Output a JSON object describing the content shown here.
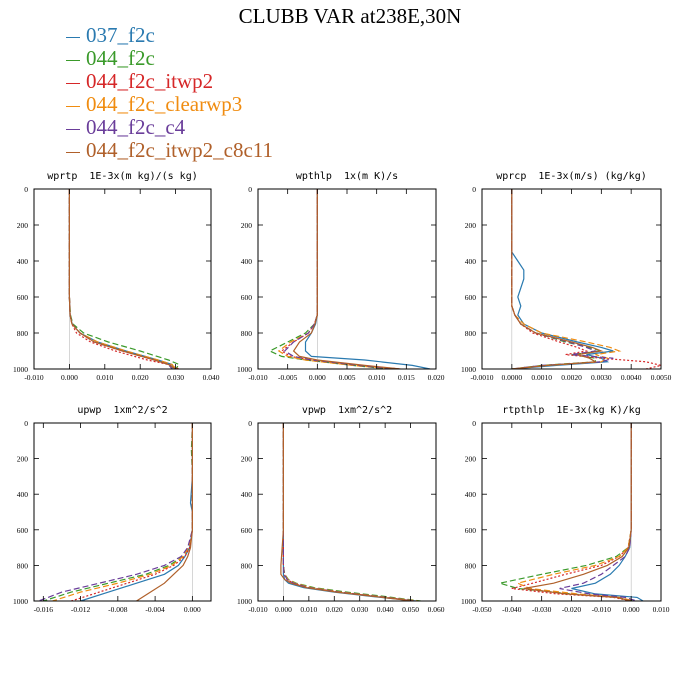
{
  "title": "CLUBB VAR at238E,30N",
  "legend": [
    {
      "name": "037_f2c",
      "color": "#2a7ab0",
      "dash": ""
    },
    {
      "name": "044_f2c",
      "color": "#3a9a2a",
      "dash": "6,3"
    },
    {
      "name": "044_f2c_itwp2",
      "color": "#d62728",
      "dash": "2,2"
    },
    {
      "name": "044_f2c_clearwp3",
      "color": "#f08c10",
      "dash": "6,3"
    },
    {
      "name": "044_f2c_c4",
      "color": "#6a3d9a",
      "dash": "6,3"
    },
    {
      "name": "044_f2c_itwp2_c8c11",
      "color": "#b0602a",
      "dash": ""
    }
  ],
  "chart_data": [
    {
      "type": "line",
      "title": "wprtp  1E-3x(m kg)/(s kg)",
      "xlim": [
        -0.01,
        0.04
      ],
      "ylim": [
        1000,
        0
      ],
      "xticks": [
        -0.01,
        0.0,
        0.01,
        0.02,
        0.03,
        0.04
      ],
      "xtick_labels": [
        "-0.010",
        "0.000",
        "0.010",
        "0.020",
        "0.030",
        "0.040"
      ],
      "yticks": [
        0,
        200,
        400,
        600,
        800,
        1000
      ],
      "y": [
        0,
        200,
        400,
        600,
        700,
        750,
        800,
        850,
        900,
        950,
        975,
        1000
      ],
      "series": [
        {
          "values": [
            0,
            0,
            0,
            0,
            0.0002,
            0.0008,
            0.003,
            0.008,
            0.016,
            0.025,
            0.029,
            0.029
          ]
        },
        {
          "values": [
            0,
            0,
            0,
            0,
            0.0003,
            0.001,
            0.004,
            0.011,
            0.02,
            0.028,
            0.031,
            0.03
          ]
        },
        {
          "values": [
            0,
            0,
            0,
            0,
            0.0002,
            0.0007,
            0.002,
            0.006,
            0.013,
            0.022,
            0.028,
            0.031
          ]
        },
        {
          "values": [
            0,
            0,
            0,
            0,
            0.0002,
            0.0008,
            0.003,
            0.008,
            0.016,
            0.025,
            0.029,
            0.03
          ]
        },
        {
          "values": [
            0,
            0,
            0,
            0,
            0.0002,
            0.0008,
            0.003,
            0.007,
            0.015,
            0.024,
            0.028,
            0.029
          ]
        },
        {
          "values": [
            0,
            0,
            0,
            0,
            0.0002,
            0.0007,
            0.003,
            0.007,
            0.015,
            0.024,
            0.028,
            0.03
          ]
        }
      ]
    },
    {
      "type": "line",
      "title": "wpthlp  1x(m K)/s",
      "xlim": [
        -0.01,
        0.02
      ],
      "ylim": [
        1000,
        0
      ],
      "xticks": [
        -0.01,
        -0.005,
        0.0,
        0.005,
        0.01,
        0.015,
        0.02
      ],
      "xtick_labels": [
        "-0.010",
        "-0.005",
        "0.000",
        "0.005",
        "0.010",
        "0.015",
        "0.020"
      ],
      "yticks": [
        0,
        200,
        400,
        600,
        800,
        1000
      ],
      "y": [
        0,
        200,
        400,
        600,
        700,
        750,
        800,
        850,
        900,
        930,
        950,
        980,
        1000
      ],
      "series": [
        {
          "values": [
            0,
            0,
            0,
            0,
            0,
            -0.0003,
            -0.001,
            -0.002,
            -0.002,
            -0.001,
            0.008,
            0.016,
            0.019
          ]
        },
        {
          "values": [
            0,
            0,
            0,
            0,
            0,
            -0.0005,
            -0.002,
            -0.005,
            -0.008,
            -0.006,
            -0.002,
            0.006,
            0.012
          ]
        },
        {
          "values": [
            0,
            0,
            0,
            0,
            0,
            -0.0005,
            -0.0015,
            -0.004,
            -0.006,
            -0.0045,
            -0.001,
            0.007,
            0.014
          ]
        },
        {
          "values": [
            0,
            0,
            0,
            0,
            0,
            -0.0005,
            -0.0015,
            -0.0045,
            -0.0065,
            -0.005,
            -0.002,
            0.006,
            0.013
          ]
        },
        {
          "values": [
            0,
            0,
            0,
            0,
            0,
            -0.0005,
            -0.0015,
            -0.004,
            -0.0055,
            -0.004,
            -0.001,
            0.007,
            0.013
          ]
        },
        {
          "values": [
            0,
            0,
            0,
            0,
            0,
            -0.0004,
            -0.001,
            -0.003,
            -0.004,
            -0.003,
            0.0,
            0.008,
            0.014
          ]
        }
      ]
    },
    {
      "type": "line",
      "title": "wprcp  1E-3x(m/s) (kg/kg)",
      "xlim": [
        -0.001,
        0.005
      ],
      "ylim": [
        1000,
        0
      ],
      "xticks": [
        -0.001,
        0.0,
        0.001,
        0.002,
        0.003,
        0.004,
        0.005
      ],
      "xtick_labels": [
        "-0.0010",
        "0.0000",
        "0.0010",
        "0.0020",
        "0.0030",
        "0.0040",
        "0.0050"
      ],
      "yticks": [
        0,
        200,
        400,
        600,
        800,
        1000
      ],
      "y": [
        0,
        200,
        350,
        400,
        450,
        500,
        550,
        600,
        650,
        700,
        750,
        800,
        850,
        880,
        900,
        920,
        940,
        960,
        980,
        1000
      ],
      "series": [
        {
          "values": [
            0,
            0,
            0,
            0.0002,
            0.0004,
            0.0004,
            0.0003,
            0.0002,
            0.0003,
            0.0002,
            0.0004,
            0.001,
            0.0022,
            0.003,
            0.0034,
            0.0025,
            0.003,
            0.0032,
            0.0015,
            0.0
          ]
        },
        {
          "values": [
            0,
            0,
            0,
            0,
            0,
            0,
            0,
            0,
            0,
            0.0001,
            0.0003,
            0.0008,
            0.0018,
            0.0026,
            0.003,
            0.002,
            0.0028,
            0.0028,
            0.001,
            0.0
          ]
        },
        {
          "values": [
            0,
            0,
            0,
            0,
            0,
            0,
            0,
            0,
            0,
            0.0001,
            0.0003,
            0.0007,
            0.0016,
            0.0022,
            0.0025,
            0.0018,
            0.003,
            0.0045,
            0.005,
            0.0045
          ]
        },
        {
          "values": [
            0,
            0,
            0,
            0,
            0,
            0,
            0,
            0,
            0,
            0.0001,
            0.0004,
            0.001,
            0.0025,
            0.0033,
            0.0036,
            0.0028,
            0.0032,
            0.003,
            0.0012,
            0.0
          ]
        },
        {
          "values": [
            0,
            0,
            0,
            0,
            0,
            0,
            0,
            0,
            0,
            0.0001,
            0.0003,
            0.0008,
            0.0019,
            0.0025,
            0.0028,
            0.002,
            0.0034,
            0.003,
            0.001,
            0.0
          ]
        },
        {
          "values": [
            0,
            0,
            0,
            0,
            0,
            0,
            0,
            0,
            0,
            0.0001,
            0.0003,
            0.0008,
            0.002,
            0.0027,
            0.003,
            0.0022,
            0.0026,
            0.0028,
            0.0012,
            0.0
          ]
        }
      ]
    },
    {
      "type": "line",
      "title": "upwp  1xm^2/s^2",
      "xlim": [
        -0.017,
        0.002
      ],
      "ylim": [
        1000,
        0
      ],
      "xticks": [
        -0.016,
        -0.012,
        -0.008,
        -0.004,
        0.0
      ],
      "xtick_labels": [
        "-0.016",
        "-0.012",
        "-0.008",
        "-0.004",
        "0.000"
      ],
      "yticks": [
        0,
        200,
        400,
        600,
        800,
        1000
      ],
      "y": [
        0,
        150,
        300,
        450,
        500,
        600,
        700,
        750,
        800,
        850,
        900,
        950,
        1000
      ],
      "series": [
        {
          "values": [
            0,
            0,
            0,
            -0.0002,
            0.0,
            0,
            -0.0003,
            -0.0008,
            -0.0015,
            -0.003,
            -0.006,
            -0.009,
            -0.012
          ]
        },
        {
          "values": [
            0,
            -0.0001,
            0,
            0,
            0,
            0,
            -0.0004,
            -0.001,
            -0.0025,
            -0.005,
            -0.009,
            -0.013,
            -0.016
          ]
        },
        {
          "values": [
            0,
            0,
            0,
            0,
            0,
            0,
            -0.0003,
            -0.0008,
            -0.002,
            -0.004,
            -0.007,
            -0.01,
            -0.013
          ]
        },
        {
          "values": [
            0,
            0,
            0,
            0,
            0,
            0,
            -0.0004,
            -0.001,
            -0.0022,
            -0.0045,
            -0.008,
            -0.012,
            -0.015
          ]
        },
        {
          "values": [
            0,
            0,
            0,
            0,
            0,
            0,
            -0.0005,
            -0.0012,
            -0.003,
            -0.006,
            -0.01,
            -0.014,
            -0.0165
          ]
        },
        {
          "values": [
            0,
            0,
            0,
            0,
            0,
            0,
            -0.0002,
            -0.0005,
            -0.001,
            -0.002,
            -0.003,
            -0.0045,
            -0.006
          ]
        }
      ]
    },
    {
      "type": "line",
      "title": "vpwp  1xm^2/s^2",
      "xlim": [
        -0.01,
        0.06
      ],
      "ylim": [
        1000,
        0
      ],
      "xticks": [
        -0.01,
        0.0,
        0.01,
        0.02,
        0.03,
        0.04,
        0.05,
        0.06
      ],
      "xtick_labels": [
        "-0.010",
        "0.000",
        "0.010",
        "0.020",
        "0.030",
        "0.040",
        "0.050",
        "0.060"
      ],
      "yticks": [
        0,
        200,
        400,
        600,
        800,
        1000
      ],
      "y": [
        0,
        200,
        400,
        600,
        800,
        850,
        880,
        900,
        925,
        950,
        975,
        1000
      ],
      "series": [
        {
          "values": [
            0,
            0,
            0,
            0,
            0,
            0,
            0.0005,
            0.002,
            0.008,
            0.02,
            0.035,
            0.052
          ]
        },
        {
          "values": [
            0,
            0,
            0,
            0,
            0,
            0.0005,
            0.002,
            0.005,
            0.012,
            0.025,
            0.04,
            0.054
          ]
        },
        {
          "values": [
            0,
            0,
            0,
            0,
            0,
            0.0003,
            0.0015,
            0.004,
            0.01,
            0.022,
            0.037,
            0.052
          ]
        },
        {
          "values": [
            0,
            0,
            0,
            0,
            0,
            0.0004,
            0.0018,
            0.0045,
            0.011,
            0.023,
            0.038,
            0.053
          ]
        },
        {
          "values": [
            0,
            0,
            0,
            0,
            0,
            0.0003,
            0.0015,
            0.004,
            0.01,
            0.022,
            0.037,
            0.052
          ]
        },
        {
          "values": [
            0,
            0,
            0,
            0,
            -0.001,
            -0.001,
            0.0005,
            0.003,
            0.009,
            0.021,
            0.036,
            0.051
          ]
        }
      ]
    },
    {
      "type": "line",
      "title": "rtpthlp  1E-3x(kg K)/kg",
      "xlim": [
        -0.05,
        0.01
      ],
      "ylim": [
        1000,
        0
      ],
      "xticks": [
        -0.05,
        -0.04,
        -0.03,
        -0.02,
        -0.01,
        0.0,
        0.01
      ],
      "xtick_labels": [
        "-0.050",
        "-0.040",
        "-0.030",
        "-0.020",
        "-0.010",
        "0.000",
        "0.010"
      ],
      "yticks": [
        0,
        200,
        400,
        600,
        800,
        1000
      ],
      "y": [
        0,
        200,
        400,
        600,
        700,
        750,
        800,
        850,
        900,
        930,
        960,
        980,
        1000
      ],
      "series": [
        {
          "values": [
            0,
            0,
            0,
            0,
            -0.0005,
            -0.002,
            -0.004,
            -0.007,
            -0.012,
            -0.02,
            -0.012,
            0.002,
            0.004
          ]
        },
        {
          "values": [
            0,
            0,
            0,
            0,
            -0.001,
            -0.005,
            -0.015,
            -0.03,
            -0.044,
            -0.038,
            -0.02,
            -0.005,
            0.001
          ]
        },
        {
          "values": [
            0,
            0,
            0,
            0,
            -0.001,
            -0.004,
            -0.01,
            -0.022,
            -0.033,
            -0.04,
            -0.025,
            -0.006,
            0.0
          ]
        },
        {
          "values": [
            0,
            0,
            0,
            0,
            -0.001,
            -0.004,
            -0.012,
            -0.026,
            -0.038,
            -0.034,
            -0.018,
            -0.004,
            0.001
          ]
        },
        {
          "values": [
            0,
            0,
            0,
            0,
            -0.0005,
            -0.002,
            -0.006,
            -0.01,
            -0.016,
            -0.024,
            -0.014,
            -0.002,
            0.002
          ]
        },
        {
          "values": [
            0,
            0,
            0,
            0,
            -0.0008,
            -0.003,
            -0.008,
            -0.016,
            -0.026,
            -0.036,
            -0.022,
            -0.005,
            0.0
          ]
        }
      ]
    }
  ]
}
